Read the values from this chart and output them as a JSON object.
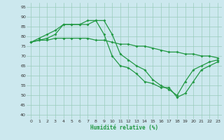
{
  "xlabel": "Humidité relative (%)",
  "xlim": [
    -0.5,
    23.5
  ],
  "ylim": [
    38,
    97
  ],
  "yticks": [
    40,
    45,
    50,
    55,
    60,
    65,
    70,
    75,
    80,
    85,
    90,
    95
  ],
  "xticks": [
    0,
    1,
    2,
    3,
    4,
    5,
    6,
    7,
    8,
    9,
    10,
    11,
    12,
    13,
    14,
    15,
    16,
    17,
    18,
    19,
    20,
    21,
    22,
    23
  ],
  "bg_color": "#cce8ee",
  "grid_color": "#99ccbb",
  "line_color": "#229944",
  "line1_x": [
    0,
    1,
    2,
    3,
    4,
    5,
    6,
    7,
    8,
    9,
    10,
    11,
    12,
    13,
    14,
    15,
    16,
    17,
    18,
    19,
    20,
    21,
    22,
    23
  ],
  "line1_y": [
    77,
    78,
    79,
    81,
    86,
    86,
    86,
    88,
    88,
    81,
    70,
    65,
    64,
    61,
    57,
    56,
    54,
    54,
    49,
    51,
    57,
    63,
    65,
    67
  ],
  "line2_x": [
    0,
    1,
    2,
    3,
    4,
    5,
    6,
    7,
    8,
    9,
    10,
    11,
    12,
    13,
    14,
    15,
    16,
    17,
    18,
    19,
    20,
    21,
    22,
    23
  ],
  "line2_y": [
    77,
    79,
    81,
    83,
    86,
    86,
    86,
    86,
    88,
    88,
    81,
    71,
    68,
    65,
    63,
    58,
    55,
    53,
    50,
    57,
    63,
    65,
    67,
    68
  ],
  "line3_x": [
    0,
    1,
    2,
    3,
    4,
    5,
    6,
    7,
    8,
    9,
    10,
    11,
    12,
    13,
    14,
    15,
    16,
    17,
    18,
    19,
    20,
    21,
    22,
    23
  ],
  "line3_y": [
    77,
    78,
    78,
    79,
    79,
    79,
    79,
    79,
    78,
    78,
    77,
    76,
    76,
    75,
    75,
    74,
    73,
    72,
    72,
    71,
    71,
    70,
    70,
    69
  ],
  "markersize": 2.0,
  "linewidth": 0.9
}
